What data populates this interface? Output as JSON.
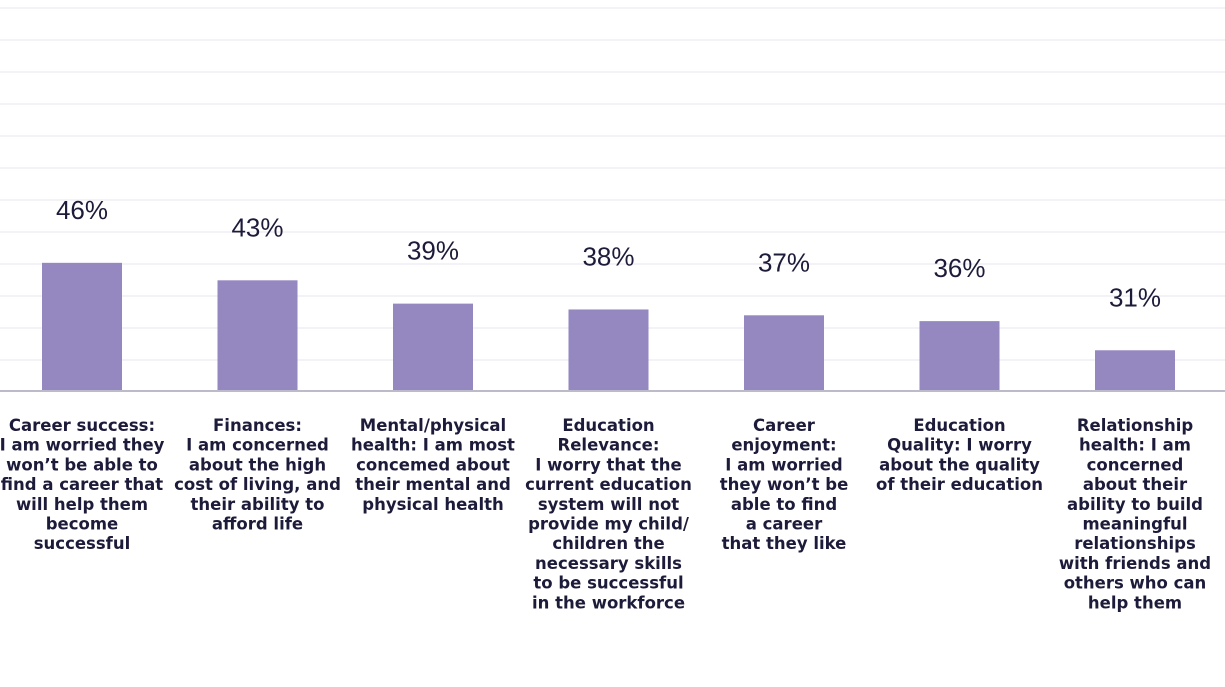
{
  "chart_data": {
    "type": "bar",
    "title": "",
    "xlabel": "",
    "ylabel": "",
    "ylim": [
      0,
      55
    ],
    "grid": true,
    "categories": [
      [
        "Career success:",
        "I am worried they",
        "won’t be able to",
        "find a career that",
        "will help them",
        "become",
        "successful"
      ],
      [
        "Finances:",
        "I am concerned",
        "about the high",
        "cost of living, and",
        "their ability to",
        "afford life"
      ],
      [
        "Mental/physical",
        "health: I am most",
        "concemed about",
        "their mental and",
        "physical health"
      ],
      [
        "Education",
        "Relevance:",
        "I worry that the",
        "current education",
        "system will not",
        "provide my child/",
        "children the",
        "necessary skills",
        "to be successful",
        "in the workforce"
      ],
      [
        "Career",
        "enjoyment:",
        "I am worried",
        "they won’t be",
        "able to find",
        "a career",
        "that they like"
      ],
      [
        "Education",
        "Quality: I worry",
        "about the quality",
        "of their education"
      ],
      [
        "Relationship",
        "health: I am",
        "concerned",
        "about their",
        "ability to build",
        "meaningful",
        "relationships",
        "with friends and",
        "others who can",
        "help them"
      ]
    ],
    "values": [
      46,
      43,
      39,
      38,
      37,
      36,
      31
    ],
    "value_labels": [
      "46%",
      "43%",
      "39%",
      "38%",
      "37%",
      "36%",
      "31%"
    ],
    "bar_color": "#9587c0"
  }
}
